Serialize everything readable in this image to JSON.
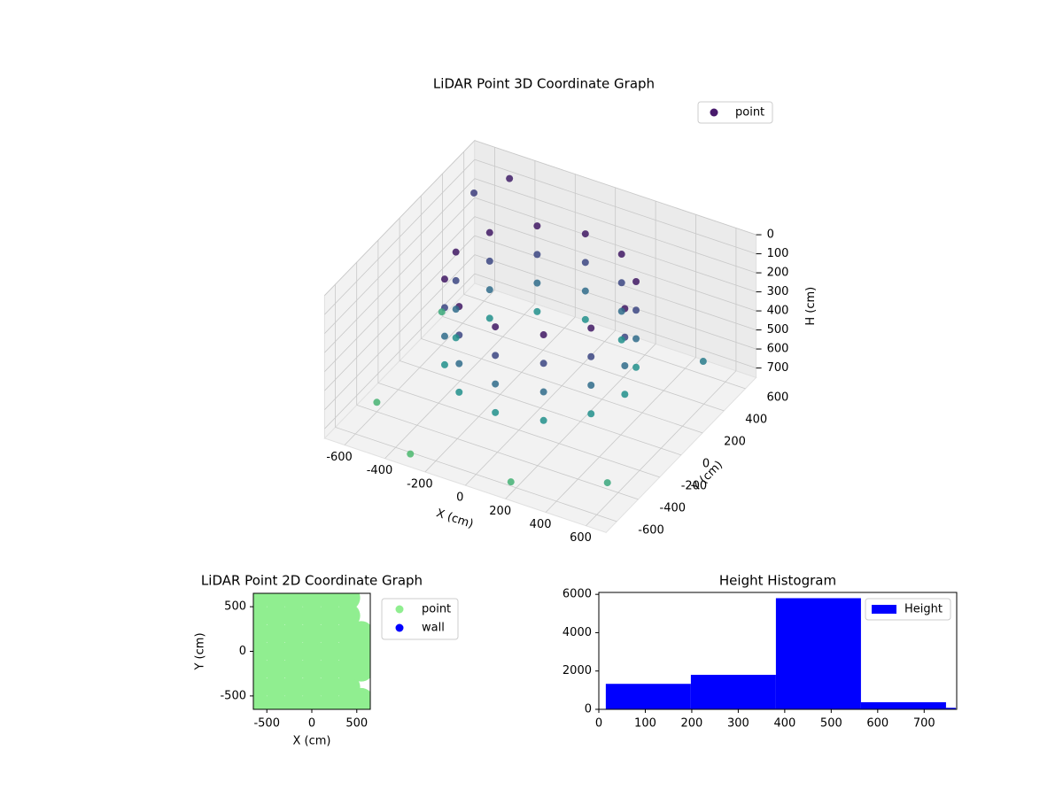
{
  "chart_data": [
    {
      "type": "scatter3d",
      "title": "LiDAR Point 3D Coordinate Graph",
      "xlabel": "X (cm)",
      "ylabel": "Y (cm)",
      "zlabel": "H (cm)",
      "xlim": [
        -700,
        700
      ],
      "ylim": [
        -700,
        700
      ],
      "zlim": [
        0,
        750
      ],
      "zinverted": true,
      "xticks": [
        -600,
        -400,
        -200,
        0,
        200,
        400,
        600
      ],
      "yticks": [
        -600,
        -400,
        -200,
        0,
        200,
        400,
        600
      ],
      "zticks": [
        0,
        100,
        200,
        300,
        400,
        500,
        600,
        700
      ],
      "cmap": "viridis",
      "grid": true,
      "legend": "upper right",
      "series": [
        {
          "name": "point",
          "color": "#481a6c",
          "x": [
            420,
            364,
            210,
            0,
            -210,
            -364,
            -420,
            -364,
            -210,
            0,
            210,
            364,
            420,
            364,
            210,
            0,
            -210,
            -364,
            -420,
            -364,
            -210,
            0,
            210,
            364,
            420,
            364,
            210,
            0,
            -210,
            -364,
            -420,
            -364,
            -210,
            0,
            210,
            364,
            420,
            364,
            210,
            0,
            -210,
            -364,
            -420,
            -364,
            -210,
            0,
            210,
            364,
            -650,
            -600,
            -300,
            200,
            600,
            -650,
            -500,
            650
          ],
          "y": [
            0,
            210,
            364,
            420,
            364,
            210,
            0,
            -210,
            -364,
            -420,
            -364,
            -210,
            0,
            210,
            364,
            420,
            364,
            210,
            0,
            -210,
            -364,
            -420,
            -364,
            -210,
            0,
            210,
            364,
            420,
            364,
            210,
            0,
            -210,
            -364,
            -420,
            -364,
            -210,
            0,
            210,
            364,
            420,
            364,
            210,
            0,
            -210,
            -364,
            -420,
            -364,
            -210,
            300,
            -400,
            -650,
            -650,
            -500,
            600,
            650,
            300
          ],
          "z": [
            80,
            80,
            80,
            80,
            80,
            80,
            80,
            80,
            80,
            80,
            80,
            80,
            230,
            230,
            230,
            230,
            230,
            230,
            230,
            230,
            230,
            230,
            230,
            230,
            380,
            380,
            380,
            380,
            380,
            380,
            380,
            380,
            380,
            380,
            380,
            380,
            530,
            530,
            530,
            530,
            530,
            530,
            530,
            530,
            530,
            530,
            530,
            530,
            650,
            700,
            720,
            690,
            640,
            200,
            100,
            450
          ]
        }
      ]
    },
    {
      "type": "scatter",
      "title": "LiDAR Point 2D Coordinate Graph",
      "xlabel": "X (cm)",
      "ylabel": "Y (cm)",
      "xlim": [
        -650,
        650
      ],
      "ylim": [
        -650,
        650
      ],
      "xticks": [
        -500,
        0,
        500
      ],
      "yticks": [
        -500,
        0,
        500
      ],
      "legend": "outside right",
      "series": [
        {
          "name": "point",
          "color": "#90ee90",
          "x": [
            -600,
            -400,
            -200,
            0,
            200,
            400,
            -600,
            -400,
            -200,
            0,
            200,
            400,
            -600,
            -400,
            -200,
            0,
            200,
            400,
            -600,
            -400,
            -200,
            0,
            200,
            400,
            -600,
            -400,
            -200,
            0,
            200,
            400,
            -600,
            -400,
            -200,
            0,
            200,
            400,
            -600,
            -400,
            -200,
            0,
            200,
            400,
            550,
            550,
            550,
            550
          ],
          "y": [
            -600,
            -600,
            -600,
            -600,
            -600,
            -600,
            -400,
            -400,
            -400,
            -400,
            -400,
            -400,
            -200,
            -200,
            -200,
            -200,
            -200,
            -200,
            0,
            0,
            0,
            0,
            0,
            0,
            200,
            200,
            200,
            200,
            200,
            200,
            400,
            400,
            400,
            400,
            400,
            400,
            600,
            600,
            600,
            600,
            600,
            600,
            0,
            200,
            -200,
            -550
          ]
        },
        {
          "name": "wall",
          "color": "#0000ff",
          "x": [],
          "y": []
        }
      ]
    },
    {
      "type": "histogram",
      "title": "Height Histogram",
      "bins": [
        15,
        198,
        381,
        564,
        747,
        768
      ],
      "xlim": [
        0,
        770
      ],
      "ylim": [
        0,
        6100
      ],
      "xticks": [
        0,
        100,
        200,
        300,
        400,
        500,
        600,
        700
      ],
      "yticks": [
        0,
        2000,
        4000,
        6000
      ],
      "legend": "upper right",
      "series": [
        {
          "name": "Height",
          "color": "#0000ff",
          "values": [
            1330,
            1800,
            5800,
            370,
            80
          ]
        }
      ]
    }
  ]
}
